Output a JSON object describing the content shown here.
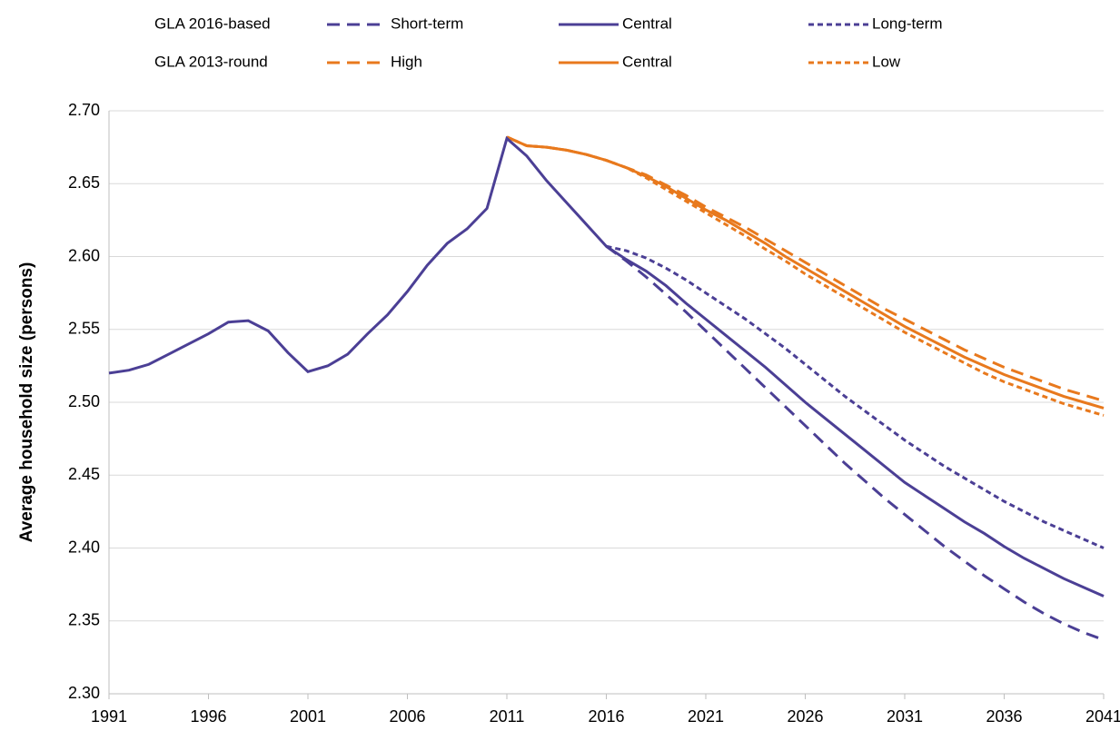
{
  "chart_data": {
    "type": "line",
    "y_label": "Average household size (persons)",
    "legend_groups": [
      "GLA 2016-based",
      "GLA 2013-round"
    ],
    "xlim": [
      1991,
      2041
    ],
    "xticks": [
      1991,
      1996,
      2001,
      2006,
      2011,
      2016,
      2021,
      2026,
      2031,
      2036,
      2041
    ],
    "ylim": [
      2.3,
      2.7
    ],
    "yticks": [
      {
        "value": 2.3,
        "label": "2.30"
      },
      {
        "value": 2.35,
        "label": "2.35"
      },
      {
        "value": 2.4,
        "label": "2.40"
      },
      {
        "value": 2.45,
        "label": "2.45"
      },
      {
        "value": 2.5,
        "label": "2.50"
      },
      {
        "value": 2.55,
        "label": "2.55"
      },
      {
        "value": 2.6,
        "label": "2.60"
      },
      {
        "value": 2.65,
        "label": "2.65"
      },
      {
        "value": 2.7,
        "label": "2.70"
      }
    ],
    "grid": true,
    "series": [
      {
        "name": "Short-term",
        "color": "#4b3f95",
        "line_style": "dash",
        "x": [
          2016,
          2017,
          2018,
          2019,
          2020,
          2021,
          2022,
          2023,
          2024,
          2025,
          2026,
          2027,
          2028,
          2029,
          2030,
          2031,
          2032,
          2033,
          2034,
          2035,
          2036,
          2037,
          2038,
          2039,
          2040,
          2041
        ],
        "values": [
          2.607,
          2.597,
          2.586,
          2.574,
          2.562,
          2.549,
          2.536,
          2.523,
          2.51,
          2.497,
          2.484,
          2.471,
          2.458,
          2.446,
          2.434,
          2.423,
          2.412,
          2.401,
          2.391,
          2.381,
          2.372,
          2.363,
          2.355,
          2.348,
          2.342,
          2.337
        ]
      },
      {
        "name": "Central",
        "color": "#4b3f95",
        "line_style": "solid",
        "x": [
          1991,
          1992,
          1993,
          1994,
          1995,
          1996,
          1997,
          1998,
          1999,
          2000,
          2001,
          2002,
          2003,
          2004,
          2005,
          2006,
          2007,
          2008,
          2009,
          2010,
          2011,
          2012,
          2013,
          2014,
          2015,
          2016,
          2017,
          2018,
          2019,
          2020,
          2021,
          2022,
          2023,
          2024,
          2025,
          2026,
          2027,
          2028,
          2029,
          2030,
          2031,
          2032,
          2033,
          2034,
          2035,
          2036,
          2037,
          2038,
          2039,
          2040,
          2041
        ],
        "values": [
          2.52,
          2.522,
          2.526,
          2.533,
          2.54,
          2.547,
          2.555,
          2.556,
          2.549,
          2.534,
          2.521,
          2.525,
          2.533,
          2.547,
          2.56,
          2.576,
          2.594,
          2.609,
          2.619,
          2.633,
          2.681,
          2.669,
          2.652,
          2.637,
          2.622,
          2.607,
          2.598,
          2.59,
          2.58,
          2.568,
          2.557,
          2.546,
          2.535,
          2.524,
          2.512,
          2.5,
          2.489,
          2.478,
          2.467,
          2.456,
          2.445,
          2.436,
          2.427,
          2.418,
          2.41,
          2.401,
          2.393,
          2.386,
          2.379,
          2.373,
          2.367
        ]
      },
      {
        "name": "Long-term",
        "color": "#4b3f95",
        "line_style": "short-dash",
        "x": [
          2016,
          2017,
          2018,
          2019,
          2020,
          2021,
          2022,
          2023,
          2024,
          2025,
          2026,
          2027,
          2028,
          2029,
          2030,
          2031,
          2032,
          2033,
          2034,
          2035,
          2036,
          2037,
          2038,
          2039,
          2040,
          2041
        ],
        "values": [
          2.607,
          2.604,
          2.599,
          2.592,
          2.584,
          2.575,
          2.566,
          2.557,
          2.547,
          2.537,
          2.526,
          2.515,
          2.504,
          2.494,
          2.484,
          2.474,
          2.465,
          2.456,
          2.448,
          2.44,
          2.432,
          2.425,
          2.418,
          2.412,
          2.406,
          2.4
        ]
      },
      {
        "name": "High",
        "color": "#e8791d",
        "line_style": "dash",
        "x": [
          2011,
          2012,
          2013,
          2014,
          2015,
          2016,
          2017,
          2018,
          2019,
          2020,
          2021,
          2022,
          2023,
          2024,
          2025,
          2026,
          2027,
          2028,
          2029,
          2030,
          2031,
          2032,
          2033,
          2034,
          2035,
          2036,
          2037,
          2038,
          2039,
          2040,
          2041
        ],
        "values": [
          2.682,
          2.676,
          2.675,
          2.673,
          2.67,
          2.666,
          2.661,
          2.656,
          2.649,
          2.642,
          2.634,
          2.627,
          2.62,
          2.612,
          2.604,
          2.596,
          2.588,
          2.58,
          2.572,
          2.564,
          2.557,
          2.55,
          2.543,
          2.536,
          2.53,
          2.524,
          2.519,
          2.514,
          2.509,
          2.505,
          2.501
        ]
      },
      {
        "name": "Central",
        "color": "#e8791d",
        "line_style": "solid",
        "x": [
          2011,
          2012,
          2013,
          2014,
          2015,
          2016,
          2017,
          2018,
          2019,
          2020,
          2021,
          2022,
          2023,
          2024,
          2025,
          2026,
          2027,
          2028,
          2029,
          2030,
          2031,
          2032,
          2033,
          2034,
          2035,
          2036,
          2037,
          2038,
          2039,
          2040,
          2041
        ],
        "values": [
          2.682,
          2.676,
          2.675,
          2.673,
          2.67,
          2.666,
          2.661,
          2.655,
          2.648,
          2.64,
          2.632,
          2.625,
          2.617,
          2.609,
          2.6,
          2.592,
          2.584,
          2.576,
          2.568,
          2.56,
          2.552,
          2.545,
          2.538,
          2.531,
          2.525,
          2.519,
          2.514,
          2.509,
          2.504,
          2.5,
          2.496
        ]
      },
      {
        "name": "Low",
        "color": "#e8791d",
        "line_style": "short-dash",
        "x": [
          2011,
          2012,
          2013,
          2014,
          2015,
          2016,
          2017,
          2018,
          2019,
          2020,
          2021,
          2022,
          2023,
          2024,
          2025,
          2026,
          2027,
          2028,
          2029,
          2030,
          2031,
          2032,
          2033,
          2034,
          2035,
          2036,
          2037,
          2038,
          2039,
          2040,
          2041
        ],
        "values": [
          2.682,
          2.676,
          2.675,
          2.673,
          2.67,
          2.666,
          2.661,
          2.654,
          2.646,
          2.638,
          2.63,
          2.622,
          2.614,
          2.605,
          2.597,
          2.588,
          2.58,
          2.572,
          2.564,
          2.556,
          2.548,
          2.541,
          2.534,
          2.527,
          2.52,
          2.514,
          2.509,
          2.504,
          2.499,
          2.495,
          2.491
        ]
      }
    ]
  }
}
